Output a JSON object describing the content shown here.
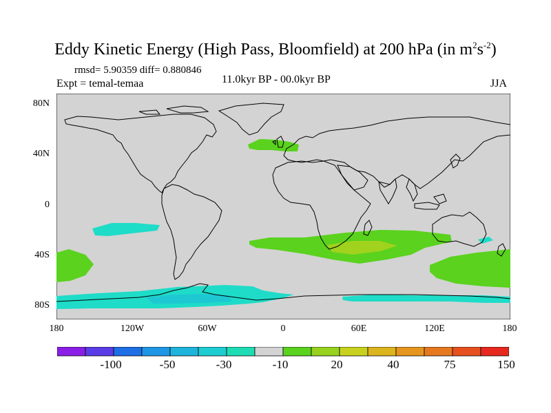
{
  "title": {
    "main": "Eddy Kinetic Energy (High Pass, Bloomfield) at 200 hPa (in m",
    "sup1": "2",
    "mid": "s",
    "sup2": "-2",
    "close": ")"
  },
  "stats": "rmsd= 5.90359 diff= 0.880846",
  "experiment": "Expt = temal-temaa",
  "period": "11.0kyr BP - 00.0kyr BP",
  "season": "JJA",
  "axes": {
    "y_labels": [
      "80N",
      "40N",
      "0",
      "40S",
      "80S"
    ],
    "x_labels": [
      "180",
      "120W",
      "60W",
      "0",
      "60E",
      "120E",
      "180"
    ]
  },
  "colorbar": {
    "colors": [
      "#8a1ee6",
      "#5a3ce6",
      "#1e6ee6",
      "#1e96e6",
      "#1eb4dc",
      "#1ecdd2",
      "#1edcb4",
      "#d3d3d3",
      "#5ad21e",
      "#96d21e",
      "#c8d21e",
      "#dcb41e",
      "#e6961e",
      "#e6781e",
      "#e6501e",
      "#e6281e"
    ],
    "labels": [
      "-100",
      "-50",
      "-30",
      "-10",
      "20",
      "40",
      "75",
      "150"
    ]
  },
  "map_colors": {
    "background": "#d3d3d3",
    "cyan": "#1edcc8",
    "deep_cyan": "#1ec8d2",
    "green": "#5ad21e",
    "yellow_green": "#a0d21e"
  }
}
